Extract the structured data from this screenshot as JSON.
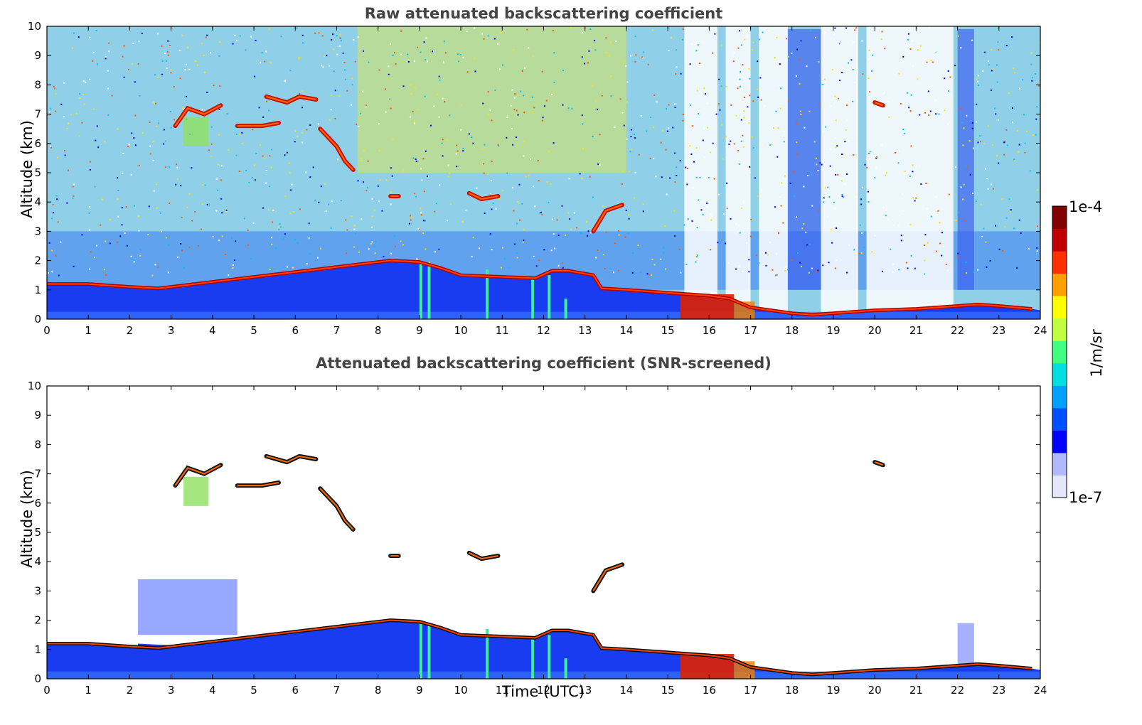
{
  "chart_data": [
    {
      "type": "heatmap",
      "title": "Raw attenuated backscattering coefficient",
      "xlabel": "",
      "ylabel": "Altitude (km)",
      "xlim": [
        0,
        24
      ],
      "ylim": [
        0,
        10
      ],
      "xticks": [
        0,
        1,
        2,
        3,
        4,
        5,
        6,
        7,
        8,
        9,
        10,
        11,
        12,
        13,
        14,
        15,
        16,
        17,
        18,
        19,
        20,
        21,
        22,
        23,
        24
      ],
      "yticks": [
        0,
        1,
        2,
        3,
        4,
        5,
        6,
        7,
        8,
        9,
        10
      ],
      "cloud_base_km": [
        {
          "t": 0,
          "z": 1.2
        },
        {
          "t": 1,
          "z": 1.2
        },
        {
          "t": 2,
          "z": 1.1
        },
        {
          "t": 2.7,
          "z": 1.05
        },
        {
          "t": 8.3,
          "z": 2.0
        },
        {
          "t": 9,
          "z": 1.95
        },
        {
          "t": 9.5,
          "z": 1.75
        },
        {
          "t": 10,
          "z": 1.5
        },
        {
          "t": 11.8,
          "z": 1.4
        },
        {
          "t": 12.2,
          "z": 1.65
        },
        {
          "t": 12.6,
          "z": 1.65
        },
        {
          "t": 13.2,
          "z": 1.5
        },
        {
          "t": 13.4,
          "z": 1.05
        },
        {
          "t": 14,
          "z": 1.0
        },
        {
          "t": 15,
          "z": 0.9
        },
        {
          "t": 15.5,
          "z": 0.85
        },
        {
          "t": 16,
          "z": 0.8
        },
        {
          "t": 16.5,
          "z": 0.7
        },
        {
          "t": 17,
          "z": 0.4
        },
        {
          "t": 17.5,
          "z": 0.3
        },
        {
          "t": 18,
          "z": 0.2
        },
        {
          "t": 18.5,
          "z": 0.15
        },
        {
          "t": 19,
          "z": 0.2
        },
        {
          "t": 20,
          "z": 0.3
        },
        {
          "t": 21,
          "z": 0.35
        },
        {
          "t": 22,
          "z": 0.45
        },
        {
          "t": 22.5,
          "z": 0.5
        },
        {
          "t": 23,
          "z": 0.45
        },
        {
          "t": 23.8,
          "z": 0.35
        }
      ]
    },
    {
      "type": "heatmap",
      "title": "Attenuated backscattering coefficient (SNR-screened)",
      "xlabel": "Time (UTC)",
      "ylabel": "Altitude (km)",
      "xlim": [
        0,
        24
      ],
      "ylim": [
        0,
        10
      ],
      "xticks": [
        0,
        1,
        2,
        3,
        4,
        5,
        6,
        7,
        8,
        9,
        10,
        11,
        12,
        13,
        14,
        15,
        16,
        17,
        18,
        19,
        20,
        21,
        22,
        23,
        24
      ],
      "yticks": [
        0,
        1,
        2,
        3,
        4,
        5,
        6,
        7,
        8,
        9,
        10
      ]
    }
  ],
  "colorbar": {
    "max_label": "1e-4",
    "min_label": "1e-7",
    "unit_label": "1/m/sr",
    "colors": [
      "#e6e6fa",
      "#b0b8ff",
      "#0000ff",
      "#0050ff",
      "#00a0ff",
      "#00e0e0",
      "#40ff80",
      "#c0ff40",
      "#ffff00",
      "#ffa000",
      "#ff3000",
      "#c00000",
      "#800000"
    ]
  }
}
